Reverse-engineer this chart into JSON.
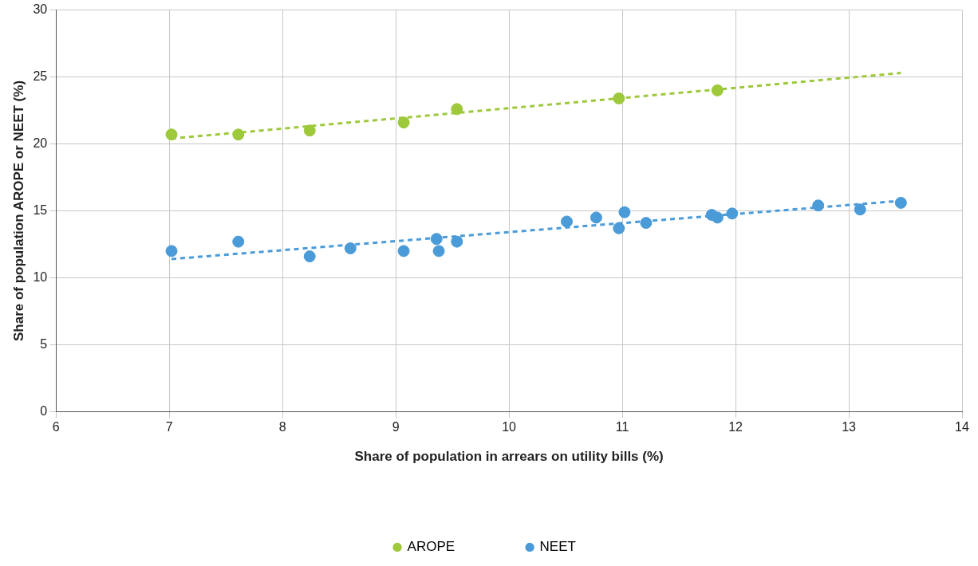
{
  "chart_data": {
    "type": "scatter",
    "xlabel": "Share of population in arrears on utility bills (%)",
    "ylabel": "Share of population AROPE or NEET (%)",
    "xlim": [
      6,
      14
    ],
    "xticks": [
      6,
      7,
      8,
      9,
      10,
      11,
      12,
      13,
      14
    ],
    "ylim": [
      0,
      30
    ],
    "yticks": [
      0,
      5,
      10,
      15,
      20,
      25,
      30
    ],
    "grid": true,
    "legend": "bottom",
    "marker": "circle",
    "series": [
      {
        "name": "AROPE",
        "color": "#9dc93b",
        "x": [
          7.02,
          7.61,
          8.24,
          9.07,
          9.54,
          10.97,
          11.84
        ],
        "values": [
          20.7,
          20.7,
          21.0,
          21.6,
          22.6,
          23.4,
          24.0
        ]
      },
      {
        "name": "NEET",
        "color": "#4a9bd8",
        "x": [
          7.02,
          7.61,
          8.24,
          8.6,
          9.07,
          9.36,
          9.38,
          9.54,
          10.51,
          10.77,
          10.97,
          11.02,
          11.21,
          11.79,
          11.84,
          11.97,
          12.73,
          13.1,
          13.46
        ],
        "values": [
          12.0,
          12.7,
          11.6,
          12.2,
          12.0,
          12.9,
          12.0,
          12.7,
          14.2,
          14.5,
          13.7,
          14.9,
          14.1,
          14.7,
          14.5,
          14.8,
          15.4,
          15.1,
          15.6
        ]
      },
      {
        "type": "line",
        "color": "#9dc93b",
        "line_style": "dashed",
        "marker": "none",
        "x": [
          7.02,
          13.46
        ],
        "values": [
          20.4,
          25.3
        ]
      },
      {
        "type": "line",
        "color": "#4a9bd8",
        "line_style": "dashed",
        "marker": "none",
        "x": [
          7.02,
          13.46
        ],
        "values": [
          11.4,
          15.75
        ]
      }
    ]
  }
}
